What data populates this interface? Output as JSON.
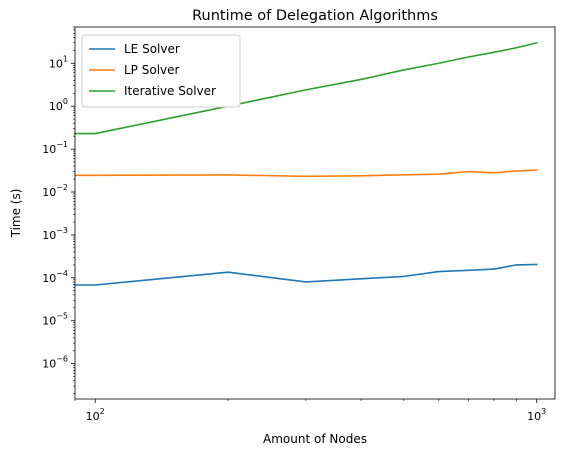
{
  "chart_data": {
    "type": "line",
    "title": "Runtime of Delegation Algorithms",
    "xlabel": "Amount of Nodes",
    "ylabel": "Time (s)",
    "x_scale": "log",
    "y_scale": "log",
    "xlim": [
      90,
      1100
    ],
    "ylim": [
      1.5e-07,
      70
    ],
    "grid": false,
    "legend_position": "top-left",
    "x_major_ticks": [
      100,
      1000
    ],
    "x_tick_labels": [
      {
        "base": "10",
        "exp": "2"
      },
      {
        "base": "10",
        "exp": "3"
      }
    ],
    "y_major_ticks": [
      1e-06,
      1e-05,
      0.0001,
      0.001,
      0.01,
      0.1,
      1,
      10
    ],
    "y_tick_labels": [
      {
        "base": "10",
        "exp": "−6"
      },
      {
        "base": "10",
        "exp": "−5"
      },
      {
        "base": "10",
        "exp": "−4"
      },
      {
        "base": "10",
        "exp": "−3"
      },
      {
        "base": "10",
        "exp": "−2"
      },
      {
        "base": "10",
        "exp": "−1"
      },
      {
        "base": "10",
        "exp": "0"
      },
      {
        "base": "10",
        "exp": "1"
      }
    ],
    "x": [
      90,
      100,
      200,
      300,
      400,
      500,
      600,
      700,
      800,
      900,
      1000
    ],
    "series": [
      {
        "name": "LE Solver",
        "color": "#1f77b4",
        "values": [
          6.8e-05,
          6.8e-05,
          0.000135,
          8e-05,
          9.5e-05,
          0.000108,
          0.00014,
          0.00015,
          0.00016,
          0.0002,
          0.000205
        ]
      },
      {
        "name": "LP Solver",
        "color": "#ff7f0e",
        "values": [
          0.0245,
          0.0245,
          0.025,
          0.0232,
          0.0238,
          0.0252,
          0.026,
          0.03,
          0.028,
          0.031,
          0.0325
        ]
      },
      {
        "name": "Iterative Solver",
        "color": "#2ca02c",
        "values": [
          0.23,
          0.23,
          1.0,
          2.4,
          4.2,
          7.0,
          10.0,
          14.0,
          18.0,
          23.0,
          30.0
        ]
      }
    ]
  }
}
